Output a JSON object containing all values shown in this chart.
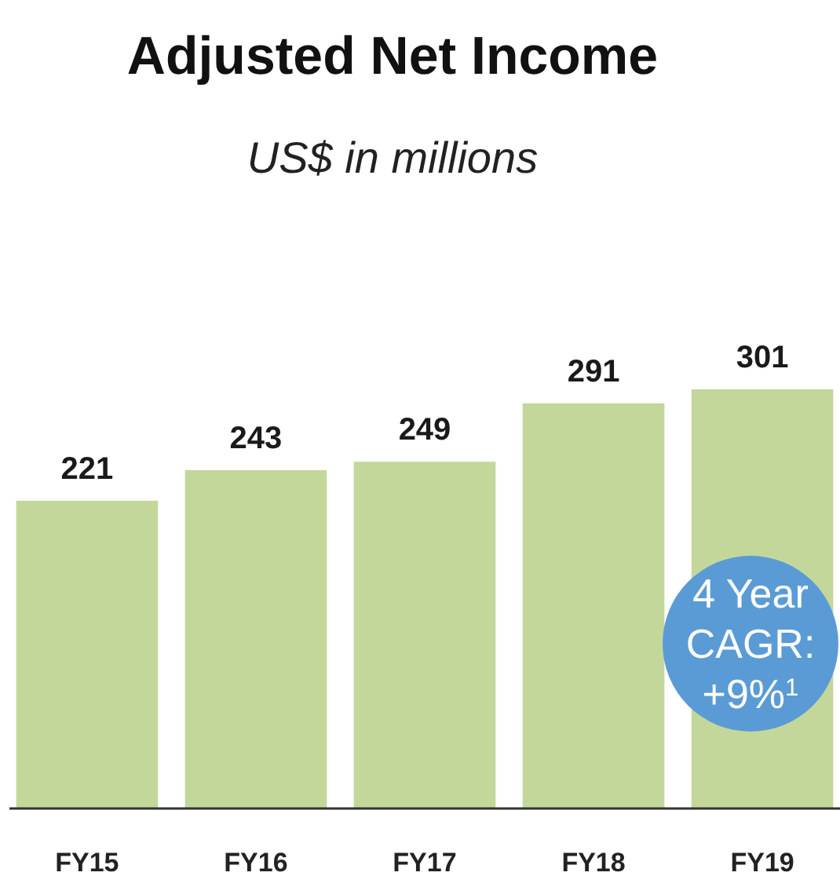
{
  "chart_data": {
    "type": "bar",
    "title": "Adjusted Net Income",
    "subtitle": "US$ in millions",
    "categories": [
      "FY15",
      "FY16",
      "FY17",
      "FY18",
      "FY19"
    ],
    "values": [
      221,
      243,
      249,
      291,
      301
    ],
    "color": "#c4d79b",
    "data_labels": true,
    "annotations": [
      "4 Year CAGR: +9%$^{1}$"
    ]
  }
}
